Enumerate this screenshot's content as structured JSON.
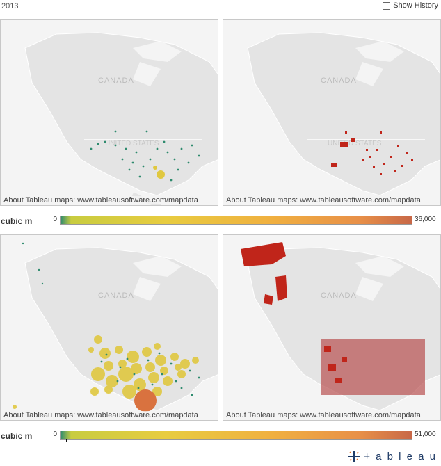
{
  "header": {
    "year": "2013",
    "show_history_label": "Show History"
  },
  "maps": {
    "credit": "About Tableau maps: www.tableausoftware.com/mapdata",
    "country_label": "CANADA",
    "us_label": "UNITED STATES",
    "colors": {
      "land": "#e4e4e4",
      "water": "#f4f4f4",
      "border": "#ffffff"
    }
  },
  "top_scale": {
    "label": "cubic m",
    "min": "0",
    "max": "36,000"
  },
  "bottom_scale": {
    "label": "cubic m",
    "min": "0",
    "max": "51,000"
  },
  "palette": {
    "green": "#2e8b6e",
    "yellow": "#e0c840",
    "orange": "#d9723f",
    "red": "#c0251a"
  },
  "logo": {
    "text": "+ a b l e a u",
    "icon": "tableau-plus-icon"
  }
}
